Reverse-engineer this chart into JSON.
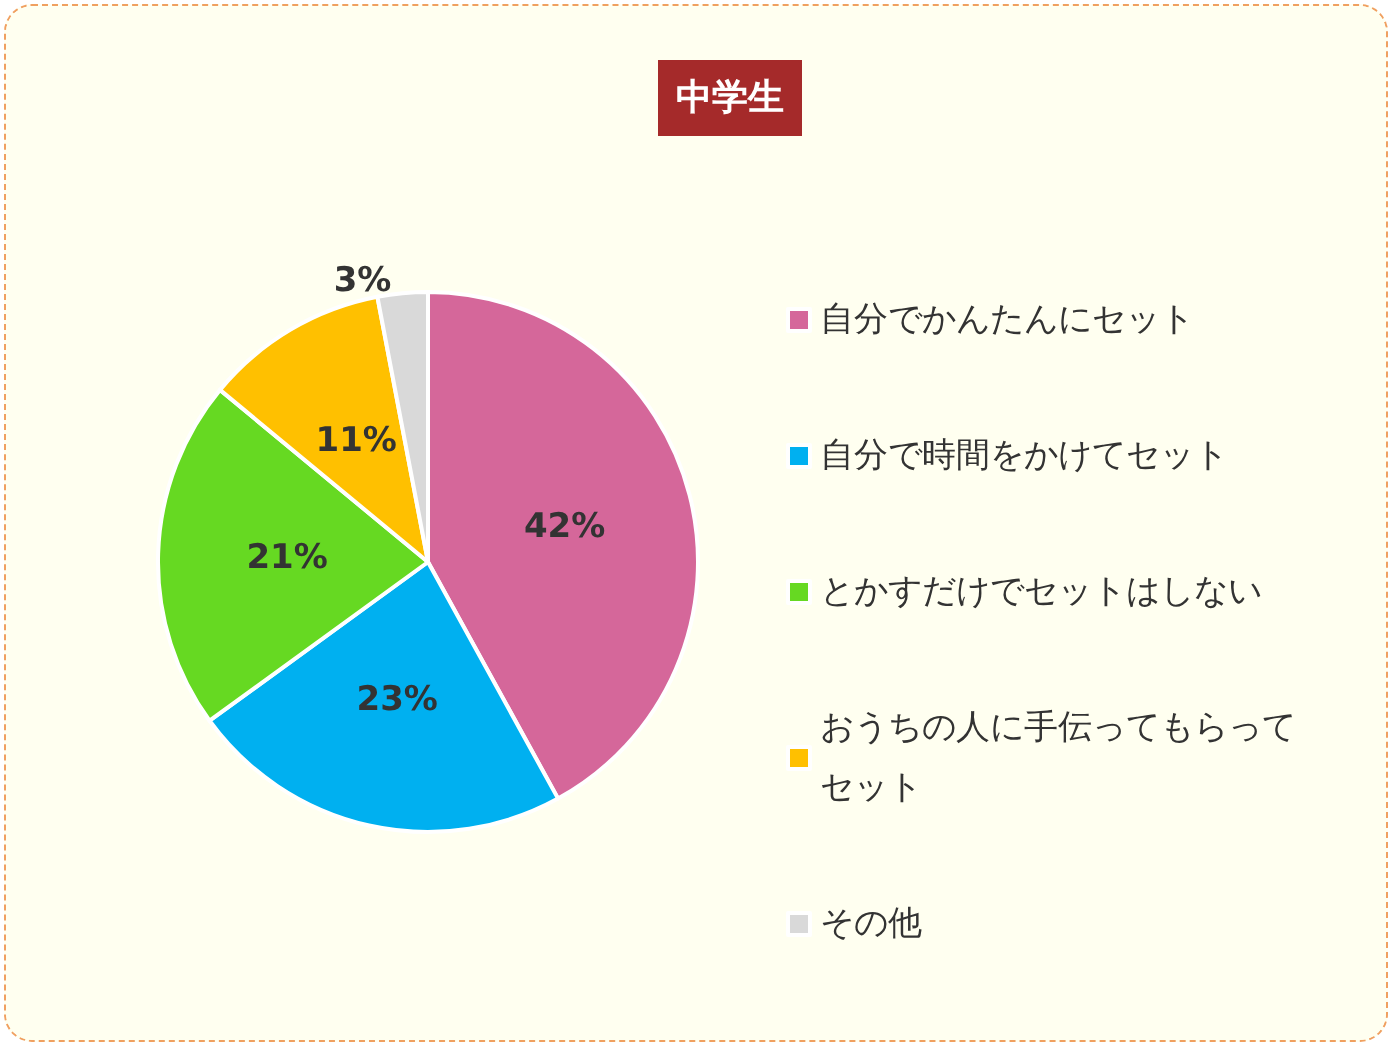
{
  "chart_data": {
    "type": "pie",
    "title": "中学生",
    "categories": [
      "自分でかんたんにセット",
      "自分で時間をかけてセット",
      "とかすだけでセットはしない",
      "おうちの人に手伝ってもらってセット",
      "その他"
    ],
    "values": [
      42,
      23,
      21,
      11,
      3
    ],
    "colors": [
      "#d5679a",
      "#00b0f0",
      "#66d922",
      "#ffc000",
      "#d9d9d9"
    ],
    "value_labels": [
      "42%",
      "23%",
      "21%",
      "11%",
      "3%"
    ],
    "legend": "right"
  }
}
